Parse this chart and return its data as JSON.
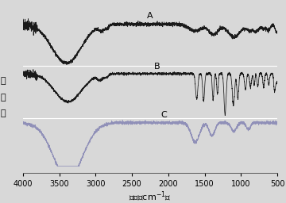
{
  "background_color": "#d8d8d8",
  "line_color_A": "#1a1a1a",
  "line_color_B": "#1a1a1a",
  "line_color_C": "#9090b8",
  "label_A": "A",
  "label_B": "B",
  "label_C": "C",
  "xlabel": "波数（cm-1）",
  "ylabel_chars": [
    "透",
    "射",
    "率"
  ],
  "xtick_labels": [
    "4000",
    "3500",
    "3000",
    "2500",
    "2000",
    "1500",
    "1000",
    "500"
  ],
  "xtick_vals": [
    4000,
    3500,
    3000,
    2500,
    2000,
    1500,
    1000,
    500
  ],
  "seed": 7
}
